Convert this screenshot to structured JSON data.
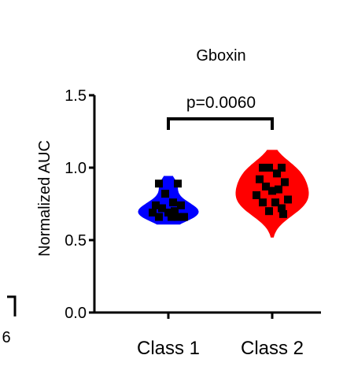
{
  "chart_data": {
    "type": "violin",
    "title": "Gboxin",
    "xlabel": "",
    "ylabel": "Normalized AUC",
    "ylim": [
      0.0,
      1.5
    ],
    "yticks": [
      "0.0",
      "0.5",
      "1.0",
      "1.5"
    ],
    "categories": [
      "Class 1",
      "Class 2"
    ],
    "colors": [
      "#0000ff",
      "#ff0000"
    ],
    "point_color": "#000000",
    "annotation": "p=0.0060",
    "edge_label": "6",
    "groups": [
      {
        "category": "Class 1",
        "color": "#0000ff",
        "range": [
          0.61,
          0.94
        ],
        "points": [
          0.89,
          0.89,
          0.82,
          0.76,
          0.74,
          0.74,
          0.72,
          0.7,
          0.69,
          0.69,
          0.66,
          0.66,
          0.66,
          0.66
        ]
      },
      {
        "category": "Class 2",
        "color": "#ff0000",
        "range": [
          0.52,
          1.12
        ],
        "points": [
          1.0,
          1.0,
          1.0,
          0.96,
          0.92,
          0.9,
          0.87,
          0.85,
          0.84,
          0.81,
          0.78,
          0.76,
          0.76,
          0.72,
          0.7,
          0.68
        ]
      }
    ]
  }
}
